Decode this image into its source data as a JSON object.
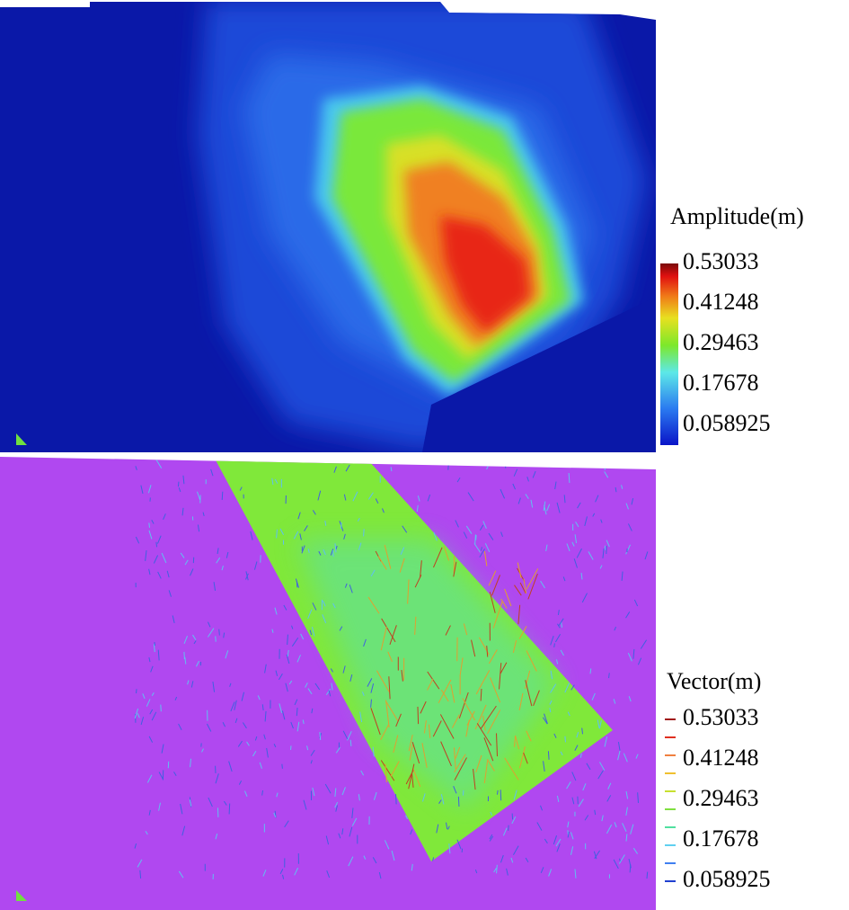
{
  "panels": [
    {
      "legend_title": "Amplitude(m)",
      "legend_ticks": [
        0.53033,
        0.41248,
        0.29463,
        0.17678,
        0.058925
      ]
    },
    {
      "legend_title": "Vector(m)",
      "legend_ticks": [
        0.53033,
        0.41248,
        0.29463,
        0.17678,
        0.058925
      ]
    }
  ]
}
